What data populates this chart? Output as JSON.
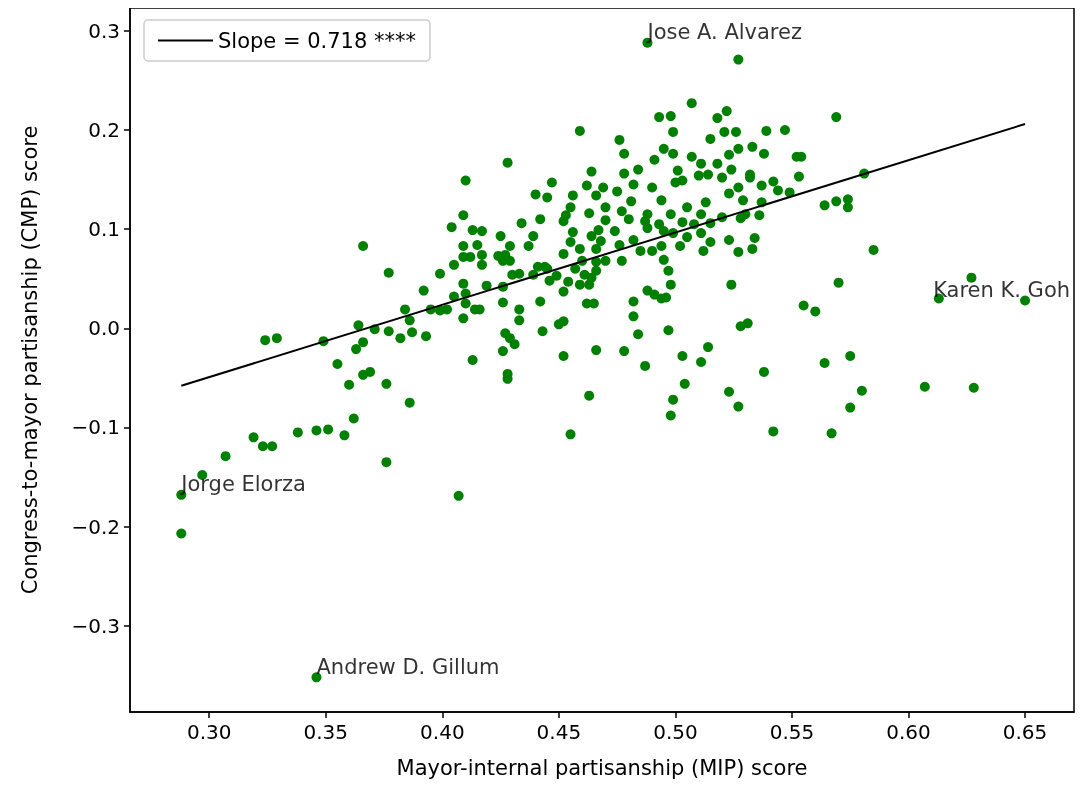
{
  "chart_data": {
    "type": "scatter",
    "xlabel": "Mayor-internal partisanship (MIP) score",
    "ylabel": "Congress-to-mayor partisanship (CMP) score",
    "xlim": [
      0.266,
      0.671
    ],
    "ylim": [
      -0.387,
      0.323
    ],
    "xticks": [
      {
        "value": 0.3,
        "label": "0.30"
      },
      {
        "value": 0.35,
        "label": "0.35"
      },
      {
        "value": 0.4,
        "label": "0.40"
      },
      {
        "value": 0.45,
        "label": "0.45"
      },
      {
        "value": 0.5,
        "label": "0.50"
      },
      {
        "value": 0.55,
        "label": "0.55"
      },
      {
        "value": 0.6,
        "label": "0.60"
      },
      {
        "value": 0.65,
        "label": "0.65"
      }
    ],
    "yticks": [
      {
        "value": -0.3,
        "label": "−0.3"
      },
      {
        "value": -0.2,
        "label": "−0.2"
      },
      {
        "value": -0.1,
        "label": "−0.1"
      },
      {
        "value": 0,
        "label": "0.0"
      },
      0.1,
      0.2,
      0.3
    ],
    "grid": false,
    "legend": "top left",
    "series": [
      {
        "color": "#008000",
        "marker": "circle",
        "x": [
          0.488,
          0.527,
          0.507,
          0.493,
          0.498,
          0.522,
          0.518,
          0.459,
          0.499,
          0.521,
          0.526,
          0.539,
          0.547,
          0.569,
          0.476,
          0.515,
          0.495,
          0.478,
          0.499,
          0.527,
          0.533,
          0.538,
          0.523,
          0.552,
          0.554,
          0.491,
          0.507,
          0.511,
          0.518,
          0.464,
          0.484,
          0.478,
          0.501,
          0.524,
          0.553,
          0.532,
          0.51,
          0.514,
          0.447,
          0.462,
          0.469,
          0.482,
          0.5,
          0.52,
          0.537,
          0.542,
          0.581,
          0.475,
          0.49,
          0.503,
          0.527,
          0.532,
          0.456,
          0.466,
          0.481,
          0.494,
          0.513,
          0.523,
          0.544,
          0.549,
          0.445,
          0.455,
          0.47,
          0.477,
          0.488,
          0.505,
          0.529,
          0.537,
          0.564,
          0.569,
          0.574,
          0.574,
          0.453,
          0.463,
          0.48,
          0.487,
          0.498,
          0.511,
          0.52,
          0.536,
          0.452,
          0.47,
          0.493,
          0.503,
          0.528,
          0.53,
          0.456,
          0.467,
          0.474,
          0.488,
          0.495,
          0.508,
          0.515,
          0.455,
          0.464,
          0.468,
          0.482,
          0.499,
          0.505,
          0.511,
          0.534,
          0.459,
          0.466,
          0.476,
          0.485,
          0.49,
          0.494,
          0.502,
          0.512,
          0.515,
          0.523,
          0.527,
          0.533,
          0.585,
          0.452,
          0.46,
          0.466,
          0.477,
          0.47,
          0.495,
          0.445,
          0.457,
          0.466,
          0.497,
          0.449,
          0.461,
          0.464,
          0.446,
          0.454,
          0.459,
          0.463,
          0.498,
          0.524,
          0.57,
          0.452,
          0.488,
          0.491,
          0.494,
          0.496,
          0.482,
          0.462,
          0.465,
          0.555,
          0.56,
          0.613,
          0.65,
          0.627,
          0.482,
          0.45,
          0.452,
          0.497,
          0.528,
          0.531,
          0.452,
          0.466,
          0.478,
          0.487,
          0.503,
          0.511,
          0.514,
          0.484,
          0.463,
          0.504,
          0.499,
          0.498,
          0.523,
          0.527,
          0.538,
          0.564,
          0.575,
          0.58,
          0.575,
          0.455,
          0.542,
          0.567,
          0.607,
          0.628,
          0.428,
          0.41,
          0.44,
          0.409,
          0.442,
          0.434,
          0.404,
          0.413,
          0.417,
          0.425,
          0.439,
          0.366,
          0.409,
          0.415,
          0.429,
          0.437,
          0.409,
          0.412,
          0.417,
          0.424,
          0.427,
          0.429,
          0.426,
          0.417,
          0.405,
          0.377,
          0.399,
          0.43,
          0.433,
          0.439,
          0.441,
          0.444,
          0.409,
          0.419,
          0.426,
          0.392,
          0.405,
          0.41,
          0.426,
          0.442,
          0.384,
          0.395,
          0.399,
          0.402,
          0.41,
          0.414,
          0.416,
          0.433,
          0.386,
          0.409,
          0.433,
          0.364,
          0.371,
          0.366,
          0.363,
          0.377,
          0.387,
          0.393,
          0.382,
          0.349,
          0.324,
          0.329,
          0.427,
          0.429,
          0.431,
          0.443,
          0.426,
          0.413,
          0.355,
          0.366,
          0.369,
          0.36,
          0.376,
          0.386,
          0.362,
          0.338,
          0.346,
          0.351,
          0.358,
          0.319,
          0.323,
          0.327,
          0.307,
          0.297,
          0.288,
          0.288,
          0.376,
          0.407,
          0.346,
          0.428,
          0.428
        ],
        "values": [
          0.288,
          0.271,
          0.227,
          0.213,
          0.214,
          0.219,
          0.212,
          0.199,
          0.198,
          0.198,
          0.198,
          0.199,
          0.2,
          0.213,
          0.19,
          0.191,
          0.181,
          0.176,
          0.176,
          0.181,
          0.183,
          0.176,
          0.175,
          0.173,
          0.173,
          0.17,
          0.173,
          0.166,
          0.166,
          0.158,
          0.16,
          0.156,
          0.159,
          0.16,
          0.153,
          0.155,
          0.154,
          0.155,
          0.147,
          0.144,
          0.142,
          0.145,
          0.147,
          0.152,
          0.144,
          0.148,
          0.156,
          0.138,
          0.142,
          0.149,
          0.142,
          0.152,
          0.134,
          0.134,
          0.128,
          0.129,
          0.127,
          0.136,
          0.139,
          0.137,
          0.132,
          0.122,
          0.122,
          0.118,
          0.115,
          0.122,
          0.129,
          0.127,
          0.124,
          0.128,
          0.13,
          0.122,
          0.114,
          0.116,
          0.11,
          0.108,
          0.115,
          0.115,
          0.112,
          0.114,
          0.108,
          0.109,
          0.105,
          0.107,
          0.111,
          0.115,
          0.097,
          0.099,
          0.098,
          0.101,
          0.098,
          0.105,
          0.106,
          0.087,
          0.093,
          0.088,
          0.089,
          0.096,
          0.092,
          0.096,
          0.091,
          0.08,
          0.08,
          0.084,
          0.078,
          0.078,
          0.083,
          0.083,
          0.078,
          0.087,
          0.089,
          0.077,
          0.08,
          0.079,
          0.075,
          0.068,
          0.067,
          0.068,
          0.068,
          0.069,
          0.06,
          0.06,
          0.058,
          0.058,
          0.053,
          0.054,
          0.051,
          0.048,
          0.047,
          0.044,
          0.044,
          0.044,
          0.044,
          0.046,
          0.037,
          0.038,
          0.034,
          0.03,
          0.031,
          0.027,
          0.025,
          0.025,
          0.023,
          0.017,
          0.03,
          0.028,
          0.051,
          0.012,
          0.004,
          0.007,
          -0.002,
          0.002,
          0.005,
          -0.028,
          -0.022,
          -0.023,
          -0.038,
          -0.028,
          -0.034,
          -0.019,
          -0.006,
          -0.068,
          -0.056,
          -0.072,
          -0.088,
          -0.064,
          -0.079,
          -0.044,
          -0.035,
          -0.028,
          -0.063,
          -0.08,
          -0.107,
          -0.104,
          -0.106,
          -0.059,
          -0.06,
          0.167,
          0.149,
          0.135,
          0.114,
          0.11,
          0.106,
          0.102,
          0.099,
          0.098,
          0.093,
          0.093,
          0.083,
          0.083,
          0.084,
          0.083,
          0.083,
          0.072,
          0.072,
          0.074,
          0.073,
          0.074,
          0.068,
          0.068,
          0.064,
          0.064,
          0.056,
          0.055,
          0.054,
          0.055,
          0.054,
          0.062,
          0.062,
          0.045,
          0.043,
          0.042,
          0.038,
          0.032,
          0.035,
          0.026,
          0.027,
          0.019,
          0.019,
          0.018,
          0.019,
          0.025,
          0.019,
          0.019,
          0.019,
          0.008,
          0.01,
          0.008,
          0.003,
          -0.001,
          -0.014,
          -0.021,
          -0.003,
          -0.004,
          -0.008,
          -0.01,
          -0.013,
          -0.012,
          -0.01,
          -0.005,
          -0.01,
          -0.016,
          -0.003,
          -0.023,
          -0.032,
          -0.036,
          -0.047,
          -0.044,
          -0.057,
          -0.056,
          -0.075,
          -0.091,
          -0.105,
          -0.103,
          -0.102,
          -0.108,
          -0.11,
          -0.119,
          -0.119,
          -0.129,
          -0.148,
          -0.168,
          -0.207,
          -0.135,
          -0.169,
          -0.352,
          -0.046,
          -0.051
        ]
      },
      {
        "type": "line",
        "name": "Slope = 0.718 ****",
        "color": "#000000",
        "marker": "none",
        "x": [
          0.288,
          0.65
        ],
        "values": [
          -0.058,
          0.206
        ]
      }
    ],
    "annotations": [
      {
        "text": "Jose A. Alvarez",
        "x": 0.488,
        "y": 0.288
      },
      {
        "text": "Karen K. Goh",
        "x": 0.65,
        "y": 0.028
      },
      {
        "text": "Jorge Elorza",
        "x": 0.288,
        "y": -0.168
      },
      {
        "text": "Andrew D. Gillum",
        "x": 0.346,
        "y": -0.352
      }
    ]
  }
}
